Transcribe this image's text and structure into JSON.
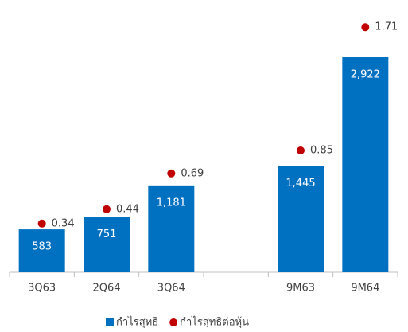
{
  "chart_data": {
    "type": "bar",
    "categories": [
      "3Q63",
      "2Q64",
      "3Q64",
      null,
      "9M63",
      "9M64"
    ],
    "series": [
      {
        "name": "กำไรสุทธิ",
        "color": "#0070c0",
        "values": [
          583,
          751,
          1181,
          null,
          1445,
          2922
        ],
        "value_labels": [
          "583",
          "751",
          "1,181",
          null,
          "1,445",
          "2,922"
        ]
      },
      {
        "name": "กำไรสุทธิต่อหุ้น",
        "color": "#c00000",
        "axis": "y2",
        "values": [
          0.34,
          0.44,
          0.69,
          null,
          0.85,
          1.71
        ]
      }
    ],
    "ylim": [
      0,
      3700
    ],
    "y2lim": [
      0,
      1.9
    ],
    "legend": "bottom"
  }
}
